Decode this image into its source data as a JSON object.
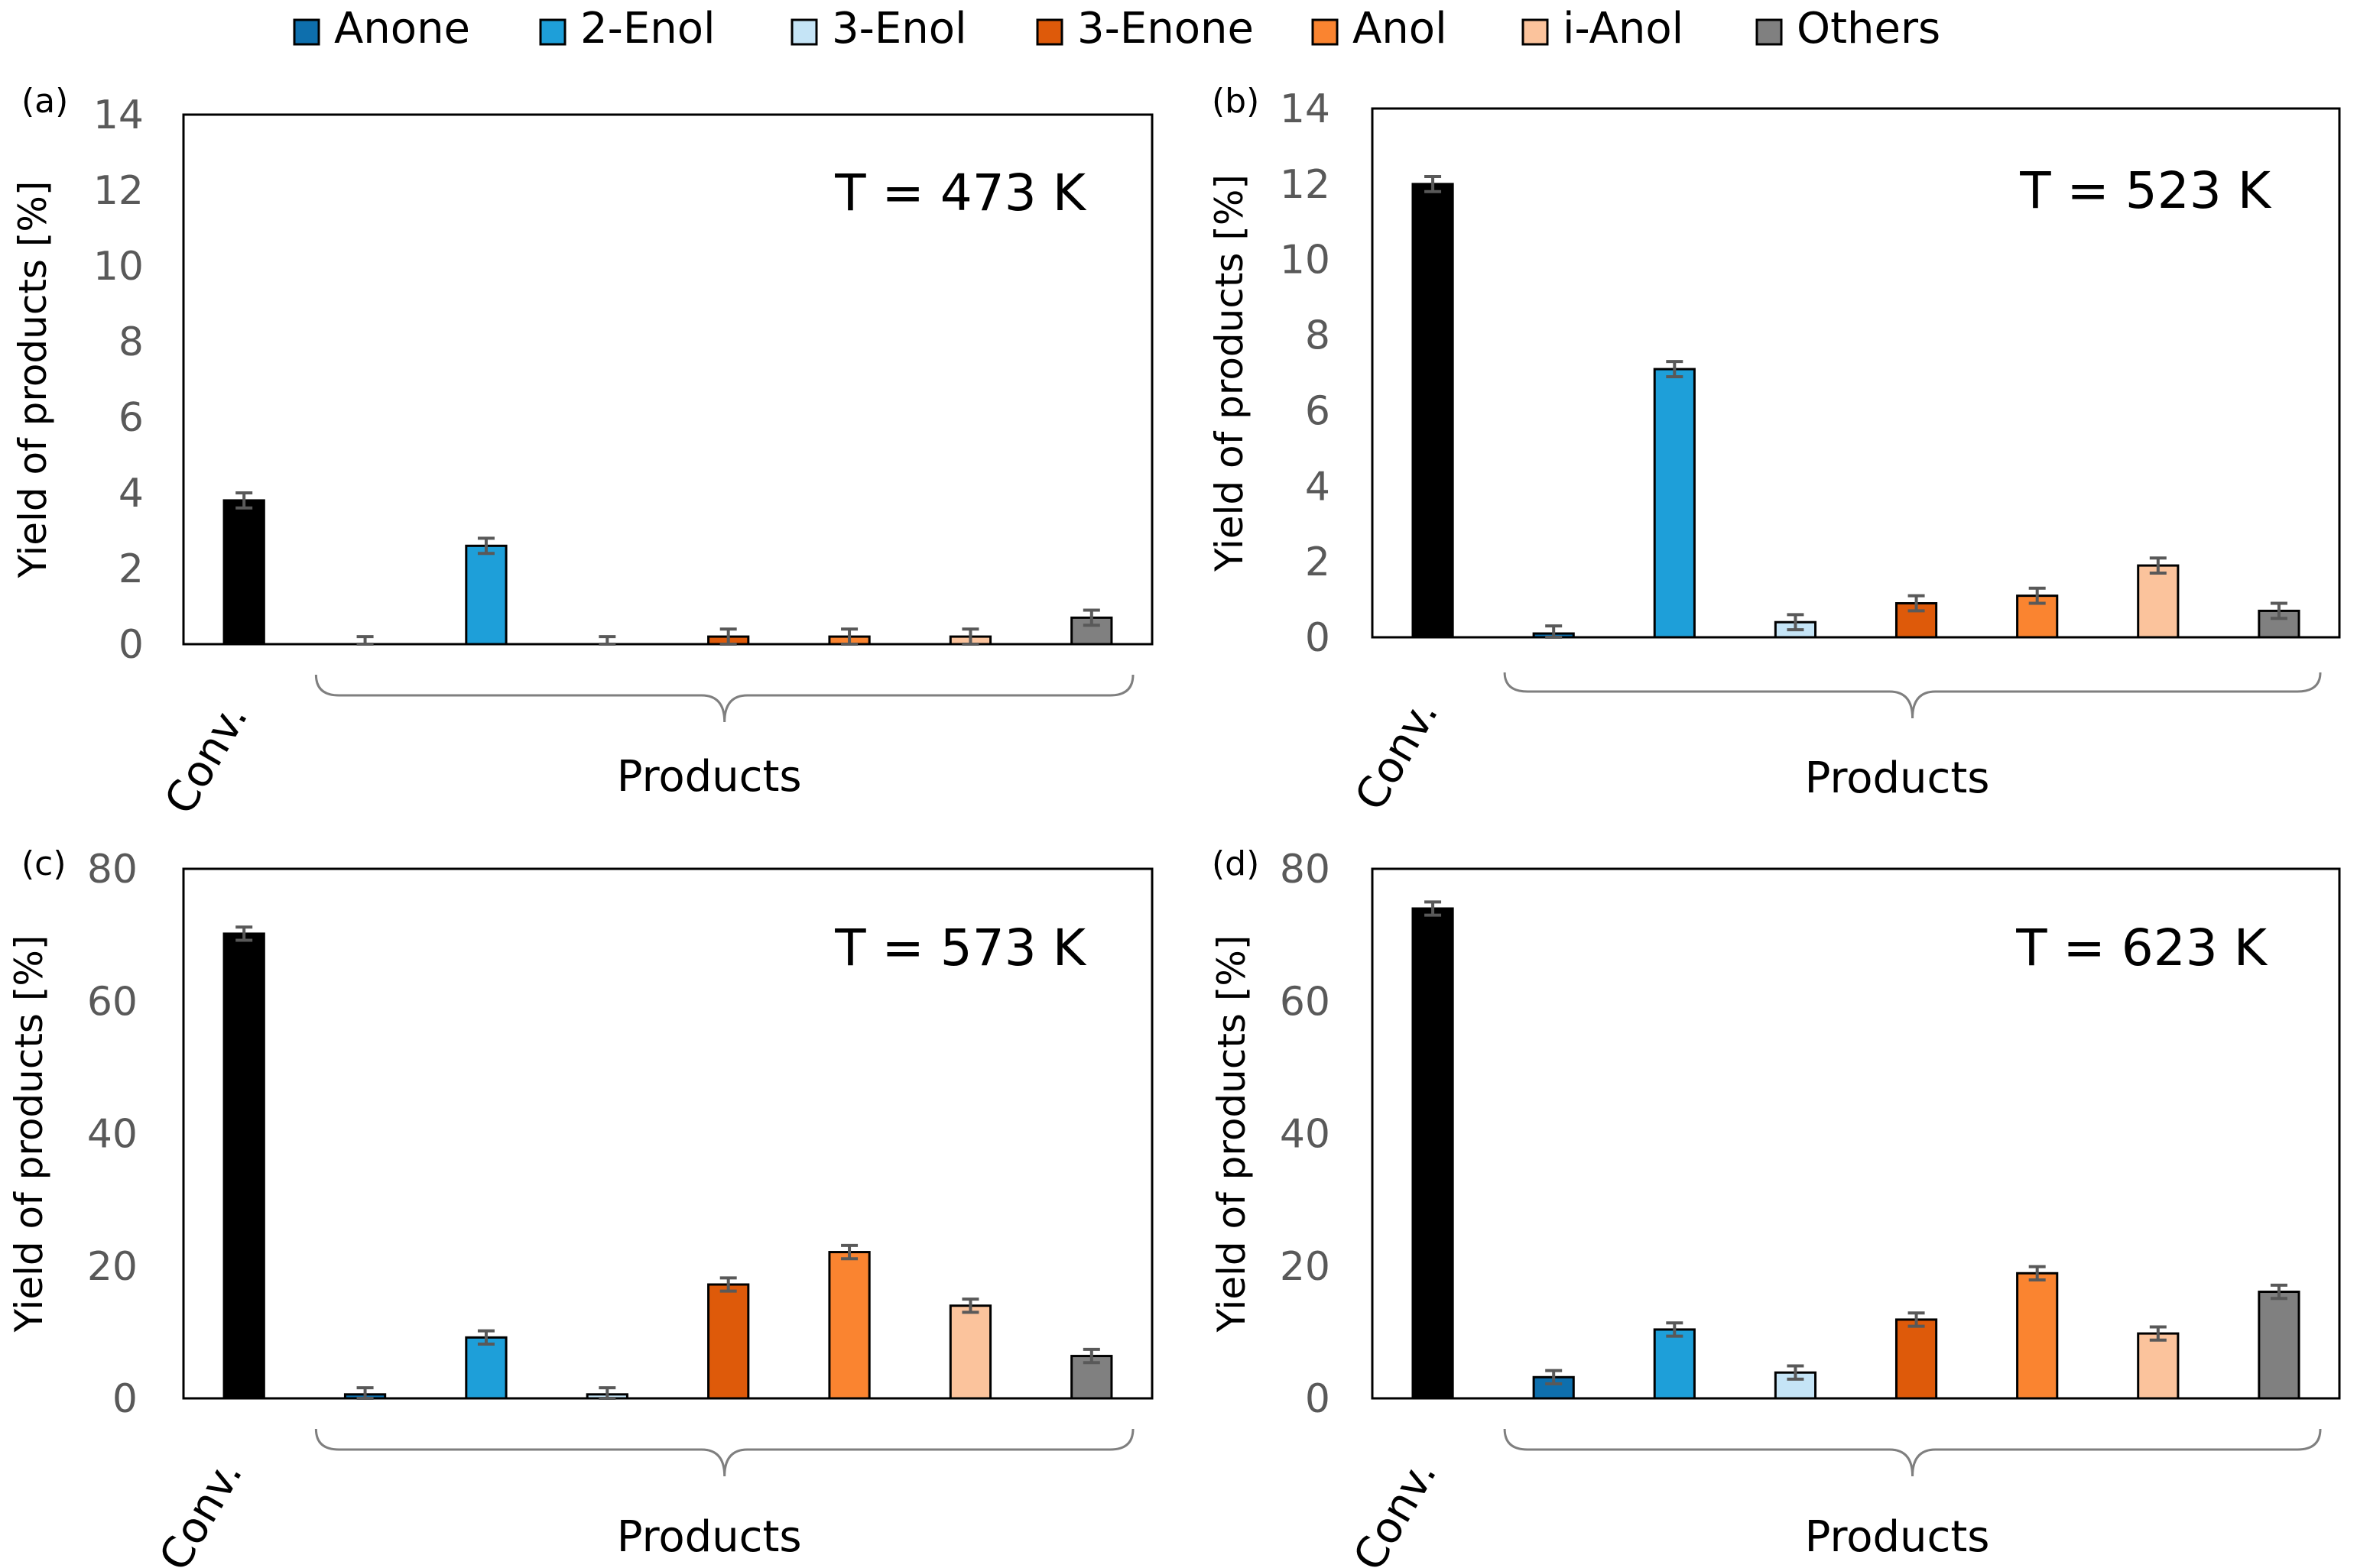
{
  "legend": [
    {
      "key": "anone",
      "label": "Anone",
      "color": "#0e6fad"
    },
    {
      "key": "enol2",
      "label": "2-Enol",
      "color": "#1e9fd9"
    },
    {
      "key": "enol3",
      "label": "3-Enol",
      "color": "#c5e4f6"
    },
    {
      "key": "enone3",
      "label": "3-Enone",
      "color": "#de5a0a"
    },
    {
      "key": "anol",
      "label": "Anol",
      "color": "#fa8430"
    },
    {
      "key": "ianol",
      "label": "i-Anol",
      "color": "#fbc39c"
    },
    {
      "key": "others",
      "label": "Others",
      "color": "#808080"
    }
  ],
  "conv_color": "#000000",
  "axis_color": "#595959",
  "chart_data": [
    {
      "type": "bar",
      "panel_label": "(a)",
      "annotation": "T = 473 K",
      "title": "",
      "ylabel": "Yield of products [%]",
      "xlabel": "Products",
      "conv_label": "Conv.",
      "ylim": [
        0,
        14
      ],
      "yticks": [
        0,
        2,
        4,
        6,
        8,
        10,
        12,
        14
      ],
      "categories": [
        "Conv.",
        "Anone",
        "2-Enol",
        "3-Enol",
        "3-Enone",
        "Anol",
        "i-Anol",
        "Others"
      ],
      "values": [
        3.8,
        0.0,
        2.6,
        0.0,
        0.2,
        0.2,
        0.2,
        0.7
      ],
      "errors": [
        0.2,
        0.2,
        0.2,
        0.2,
        0.2,
        0.2,
        0.2,
        0.2
      ]
    },
    {
      "type": "bar",
      "panel_label": "(b)",
      "annotation": "T = 523 K",
      "title": "",
      "ylabel": "Yield of products [%]",
      "xlabel": "Products",
      "conv_label": "Conv.",
      "ylim": [
        0,
        14
      ],
      "yticks": [
        0,
        2,
        4,
        6,
        8,
        10,
        12,
        14
      ],
      "categories": [
        "Conv.",
        "Anone",
        "2-Enol",
        "3-Enol",
        "3-Enone",
        "Anol",
        "i-Anol",
        "Others"
      ],
      "values": [
        12.0,
        0.1,
        7.1,
        0.4,
        0.9,
        1.1,
        1.9,
        0.7
      ],
      "errors": [
        0.2,
        0.2,
        0.2,
        0.2,
        0.2,
        0.2,
        0.2,
        0.2
      ]
    },
    {
      "type": "bar",
      "panel_label": "(c)",
      "annotation": "T = 573 K",
      "title": "",
      "ylabel": "Yield of products [%]",
      "xlabel": "Products",
      "conv_label": "Conv.",
      "ylim": [
        0,
        80
      ],
      "yticks": [
        0,
        20,
        40,
        60,
        80
      ],
      "categories": [
        "Conv.",
        "Anone",
        "2-Enol",
        "3-Enol",
        "3-Enone",
        "Anol",
        "i-Anol",
        "Others"
      ],
      "values": [
        70.2,
        0.6,
        9.2,
        0.6,
        17.2,
        22.1,
        14.0,
        6.4
      ],
      "errors": [
        1.0,
        1.0,
        1.0,
        1.0,
        1.0,
        1.0,
        1.0,
        1.0
      ]
    },
    {
      "type": "bar",
      "panel_label": "(d)",
      "annotation": "T = 623 K",
      "title": "",
      "ylabel": "Yield of products [%]",
      "xlabel": "Products",
      "conv_label": "Conv.",
      "ylim": [
        0,
        80
      ],
      "yticks": [
        0,
        20,
        40,
        60,
        80
      ],
      "categories": [
        "Conv.",
        "Anone",
        "2-Enol",
        "3-Enol",
        "3-Enone",
        "Anol",
        "i-Anol",
        "Others"
      ],
      "values": [
        74.0,
        3.2,
        10.4,
        3.9,
        11.9,
        18.9,
        9.8,
        16.1
      ],
      "errors": [
        1.0,
        1.0,
        1.0,
        1.0,
        1.0,
        1.0,
        1.0,
        1.0
      ]
    }
  ]
}
